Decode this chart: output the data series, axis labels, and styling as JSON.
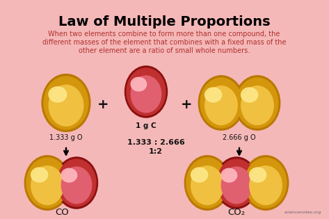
{
  "title": "Law of Multiple Proportions",
  "subtitle_line1": "When two elements combine to form more than one compound, the",
  "subtitle_line2": "different masses of the element that combines with a fixed mass of the",
  "subtitle_line3": "other element are a ratio of small whole numbers.",
  "bg_color": "#f5b8b8",
  "title_color": "#000000",
  "subtitle_color": "#b03030",
  "text_color": "#111111",
  "label_1g_c": "1 g C",
  "label_1333": "1.333 g O",
  "label_2666": "2.666 g O",
  "label_ratio1": "1.333 : 2.666",
  "label_ratio2": "1:2",
  "label_CO": "CO",
  "label_CO2": "CO₂",
  "watermark": "sciencenotes.org",
  "gold_dark": "#b87800",
  "gold_mid": "#d4960c",
  "gold_light": "#f0c040",
  "gold_shine": "#fde88a",
  "red_dark": "#8b1010",
  "red_mid": "#c03030",
  "red_light": "#e06070",
  "red_shine": "#ffb8c0"
}
